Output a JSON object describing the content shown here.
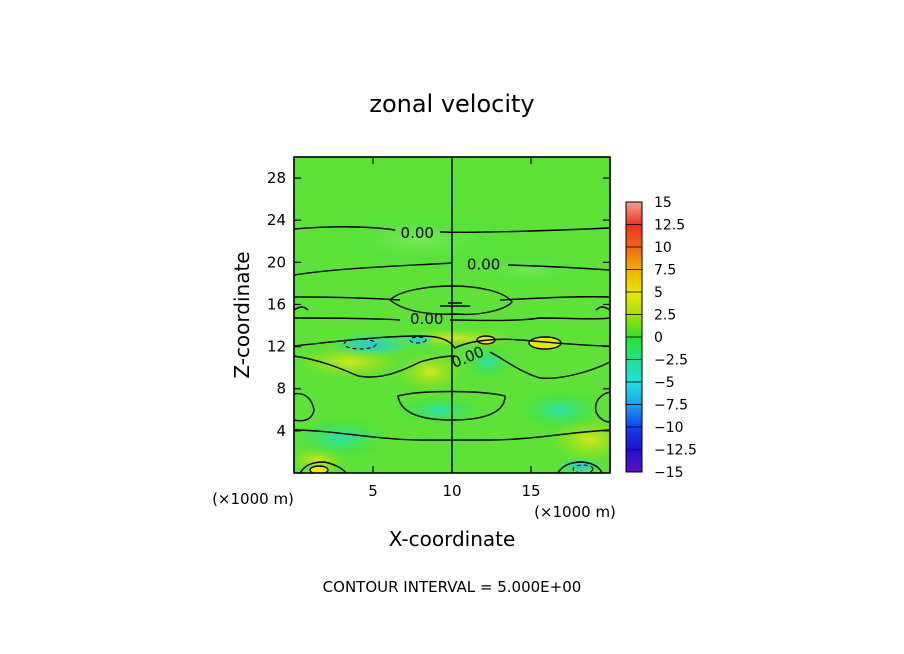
{
  "chart_data": {
    "type": "heatmap",
    "title": "zonal velocity",
    "xlabel": "X-coordinate",
    "ylabel": "Z-coordinate",
    "x_unit_left": "(×1000 m)",
    "x_unit_right": "(×1000 m)",
    "xlim": [
      0,
      20
    ],
    "ylim": [
      0,
      30
    ],
    "x_ticks": [
      5,
      10,
      15
    ],
    "y_ticks": [
      4,
      8,
      12,
      16,
      20,
      24,
      28
    ],
    "footer": "CONTOUR INTERVAL = 5.000E+00",
    "colorbar": {
      "levels": [
        15,
        12.5,
        10,
        7.5,
        5,
        2.5,
        0,
        -2.5,
        -5,
        -7.5,
        -10,
        -12.5,
        -15
      ],
      "labels": [
        "15",
        "12.5",
        "10",
        "7.5",
        "5",
        "2.5",
        "0",
        "−2.5",
        "−5",
        "−7.5",
        "−10",
        "−12.5",
        "−15"
      ],
      "colors": [
        "#f4a09a",
        "#f03020",
        "#f06810",
        "#f0b000",
        "#e8e800",
        "#a8e000",
        "#30e030",
        "#20e090",
        "#20e0e0",
        "#20a0f0",
        "#1040f0",
        "#2010d0",
        "#6010c0"
      ]
    },
    "contour_labels": [
      {
        "text": "0.00",
        "x": 7.8,
        "z": 22.8
      },
      {
        "text": "0.00",
        "x": 12.0,
        "z": 19.8
      },
      {
        "text": "0.00",
        "x": 8.4,
        "z": 14.6
      },
      {
        "text": "0.00",
        "x": 11.0,
        "z": 11.0
      }
    ],
    "grid": false,
    "legend": "right"
  }
}
